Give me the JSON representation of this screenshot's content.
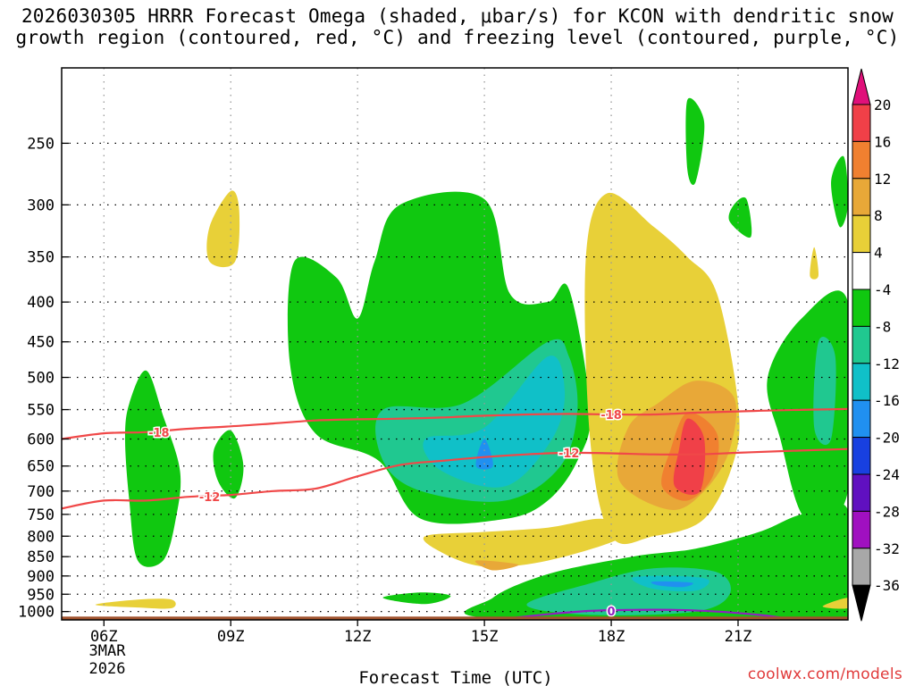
{
  "chart_data": {
    "type": "heatmap",
    "title_line1": "2026030305 HRRR Forecast Omega (shaded, μbar/s) for KCON with dendritic snow",
    "title_line2": "growth region (contoured, red, °C) and freezing level (contoured, purple, °C)",
    "xlabel": "Forecast Time (UTC)",
    "x_ticks": [
      "06Z",
      "09Z",
      "12Z",
      "15Z",
      "18Z",
      "21Z"
    ],
    "x_tick_hours": [
      6,
      9,
      12,
      15,
      18,
      21
    ],
    "x_range_hours": [
      5,
      23.6
    ],
    "date_label_day": "3MAR",
    "date_label_year": "2026",
    "y_ticks": [
      "250",
      "300",
      "350",
      "400",
      "450",
      "500",
      "550",
      "600",
      "650",
      "700",
      "750",
      "800",
      "850",
      "900",
      "950",
      "1000"
    ],
    "y_tick_values": [
      250,
      300,
      350,
      400,
      450,
      500,
      550,
      600,
      650,
      700,
      750,
      800,
      850,
      900,
      950,
      1000
    ],
    "y_range_hPa": [
      200,
      1025
    ],
    "y_scale": "log-pressure",
    "colorbar": {
      "labels": [
        "20",
        "16",
        "12",
        "8",
        "4",
        "-4",
        "-8",
        "-12",
        "-16",
        "-20",
        "-24",
        "-28",
        "-32",
        "-36"
      ],
      "bins": [
        {
          "range": "16 to 20",
          "color": "#f04048"
        },
        {
          "range": "12 to 16",
          "color": "#f08030"
        },
        {
          "range": "8 to 12",
          "color": "#e8a838"
        },
        {
          "range": "4 to 8",
          "color": "#e8d038"
        },
        {
          "range": "-4 to 4",
          "color": "#ffffff"
        },
        {
          "range": "-8 to -4",
          "color": "#10c810"
        },
        {
          "range": "-12 to -8",
          "color": "#20c890"
        },
        {
          "range": "-16 to -12",
          "color": "#10c0c8"
        },
        {
          "range": "-20 to -16",
          "color": "#2090f0"
        },
        {
          "range": "-24 to -20",
          "color": "#1840e0"
        },
        {
          "range": "-28 to -24",
          "color": "#6010c0"
        },
        {
          "range": "-32 to -28",
          "color": "#a010c0"
        },
        {
          "range": "-36 to -32",
          "color": "#a8a8a8"
        }
      ],
      "over_color": "#e0107a",
      "under_color": "#000000"
    },
    "contours": [
      {
        "name": "-18C isotherm",
        "label": "-18",
        "color": "#f04848",
        "points": [
          [
            5.0,
            600
          ],
          [
            6.0,
            590
          ],
          [
            7.0,
            588
          ],
          [
            8.0,
            582
          ],
          [
            9.0,
            578
          ],
          [
            10.0,
            573
          ],
          [
            11.0,
            568
          ],
          [
            12.0,
            566
          ],
          [
            13.0,
            565
          ],
          [
            14.0,
            563
          ],
          [
            15.0,
            560
          ],
          [
            16.0,
            558
          ],
          [
            17.0,
            557
          ],
          [
            18.0,
            558
          ],
          [
            19.0,
            558
          ],
          [
            20.0,
            555
          ],
          [
            21.0,
            553
          ],
          [
            22.0,
            551
          ],
          [
            23.6,
            549
          ]
        ]
      },
      {
        "name": "-12C isotherm",
        "label": "-12",
        "color": "#f04848",
        "points": [
          [
            5.0,
            737
          ],
          [
            6.0,
            720
          ],
          [
            7.0,
            720
          ],
          [
            8.0,
            712
          ],
          [
            9.0,
            708
          ],
          [
            10.0,
            700
          ],
          [
            11.0,
            695
          ],
          [
            12.0,
            670
          ],
          [
            13.0,
            648
          ],
          [
            14.0,
            640
          ],
          [
            15.0,
            633
          ],
          [
            16.0,
            628
          ],
          [
            17.0,
            625
          ],
          [
            18.0,
            626
          ],
          [
            19.0,
            628
          ],
          [
            20.0,
            628
          ],
          [
            21.0,
            625
          ],
          [
            22.0,
            622
          ],
          [
            23.6,
            618
          ]
        ]
      },
      {
        "name": "freezing level (0C)",
        "label": "0",
        "color": "#9020c0",
        "points": [
          [
            15.6,
            1020
          ],
          [
            16.5,
            1008
          ],
          [
            17.5,
            998
          ],
          [
            18.5,
            995
          ],
          [
            19.5,
            995
          ],
          [
            20.5,
            1000
          ],
          [
            21.5,
            1010
          ],
          [
            22.0,
            1018
          ]
        ]
      }
    ],
    "omega_regions": [
      {
        "color": "#10c810",
        "points": [
          [
            7.0,
            490
          ],
          [
            7.4,
            560
          ],
          [
            7.8,
            660
          ],
          [
            7.7,
            760
          ],
          [
            7.4,
            860
          ],
          [
            6.8,
            860
          ],
          [
            6.6,
            720
          ],
          [
            6.5,
            600
          ],
          [
            6.6,
            540
          ]
        ]
      },
      {
        "color": "#10c810",
        "points": [
          [
            9.0,
            585
          ],
          [
            9.3,
            650
          ],
          [
            9.1,
            715
          ],
          [
            8.7,
            680
          ],
          [
            8.6,
            620
          ]
        ]
      },
      {
        "color": "#e8d038",
        "points": [
          [
            9.0,
            288
          ],
          [
            9.2,
            305
          ],
          [
            9.1,
            355
          ],
          [
            8.5,
            355
          ],
          [
            8.5,
            320
          ]
        ]
      },
      {
        "color": "#e8d038",
        "points": [
          [
            6.8,
            965
          ],
          [
            7.6,
            965
          ],
          [
            7.6,
            990
          ],
          [
            6.8,
            988
          ],
          [
            5.8,
            980
          ]
        ]
      },
      {
        "color": "#10c810",
        "points": [
          [
            10.5,
            355
          ],
          [
            11.5,
            372
          ],
          [
            12.0,
            420
          ],
          [
            12.4,
            355
          ],
          [
            13.0,
            300
          ],
          [
            15.0,
            295
          ],
          [
            15.6,
            390
          ],
          [
            16.5,
            400
          ],
          [
            17.0,
            385
          ],
          [
            17.5,
            550
          ],
          [
            17.2,
            640
          ],
          [
            16.5,
            720
          ],
          [
            15.5,
            760
          ],
          [
            13.5,
            760
          ],
          [
            12.5,
            640
          ],
          [
            11.0,
            590
          ],
          [
            10.4,
            480
          ]
        ]
      },
      {
        "color": "#20c890",
        "points": [
          [
            12.6,
            550
          ],
          [
            14.5,
            540
          ],
          [
            16.5,
            450
          ],
          [
            17.0,
            470
          ],
          [
            17.2,
            550
          ],
          [
            16.8,
            650
          ],
          [
            15.5,
            720
          ],
          [
            13.5,
            700
          ],
          [
            12.6,
            640
          ]
        ]
      },
      {
        "color": "#10c0c8",
        "points": [
          [
            13.6,
            600
          ],
          [
            15.0,
            580
          ],
          [
            16.5,
            470
          ],
          [
            16.9,
            520
          ],
          [
            16.6,
            600
          ],
          [
            15.5,
            690
          ],
          [
            14.0,
            660
          ]
        ]
      },
      {
        "color": "#2090f0",
        "points": [
          [
            15.0,
            600
          ],
          [
            15.2,
            650
          ],
          [
            14.8,
            650
          ]
        ]
      },
      {
        "color": "#e8d038",
        "points": [
          [
            17.9,
            290
          ],
          [
            19.0,
            320
          ],
          [
            19.8,
            350
          ],
          [
            20.5,
            390
          ],
          [
            21.0,
            540
          ],
          [
            20.9,
            640
          ],
          [
            20.2,
            760
          ],
          [
            19.0,
            800
          ],
          [
            18.0,
            800
          ],
          [
            17.5,
            600
          ],
          [
            17.4,
            350
          ]
        ]
      },
      {
        "color": "#e8a838",
        "points": [
          [
            20.0,
            505
          ],
          [
            20.9,
            530
          ],
          [
            20.8,
            620
          ],
          [
            20.2,
            700
          ],
          [
            19.4,
            740
          ],
          [
            18.2,
            680
          ],
          [
            18.4,
            580
          ],
          [
            19.1,
            540
          ]
        ]
      },
      {
        "color": "#f08030",
        "points": [
          [
            19.8,
            555
          ],
          [
            20.5,
            590
          ],
          [
            20.4,
            670
          ],
          [
            19.8,
            720
          ],
          [
            19.2,
            690
          ],
          [
            19.4,
            620
          ]
        ]
      },
      {
        "color": "#f04048",
        "points": [
          [
            19.8,
            565
          ],
          [
            20.2,
            600
          ],
          [
            20.1,
            700
          ],
          [
            19.5,
            690
          ],
          [
            19.6,
            620
          ]
        ]
      },
      {
        "color": "#e8d038",
        "points": [
          [
            13.6,
            800
          ],
          [
            15.0,
            790
          ],
          [
            16.5,
            780
          ],
          [
            17.8,
            760
          ],
          [
            18.3,
            800
          ],
          [
            16.5,
            860
          ],
          [
            15.0,
            875
          ],
          [
            14.0,
            840
          ]
        ]
      },
      {
        "color": "#e8a838",
        "points": [
          [
            14.8,
            860
          ],
          [
            15.8,
            870
          ],
          [
            15.2,
            885
          ]
        ]
      },
      {
        "color": "#10c810",
        "points": [
          [
            15.2,
            960
          ],
          [
            16.5,
            895
          ],
          [
            18.5,
            850
          ],
          [
            20.0,
            830
          ],
          [
            21.5,
            790
          ],
          [
            22.5,
            750
          ],
          [
            23.6,
            740
          ],
          [
            23.6,
            1020
          ],
          [
            15.2,
            1020
          ]
        ]
      },
      {
        "color": "#20c890",
        "points": [
          [
            16.0,
            980
          ],
          [
            17.5,
            920
          ],
          [
            19.0,
            880
          ],
          [
            20.5,
            890
          ],
          [
            20.8,
            950
          ],
          [
            20.0,
            1000
          ],
          [
            17.5,
            1010
          ]
        ]
      },
      {
        "color": "#10c0c8",
        "points": [
          [
            18.5,
            905
          ],
          [
            19.5,
            900
          ],
          [
            20.3,
            910
          ],
          [
            20.0,
            940
          ],
          [
            19.0,
            935
          ]
        ]
      },
      {
        "color": "#2090f0",
        "points": [
          [
            19.0,
            915
          ],
          [
            19.9,
            918
          ],
          [
            19.7,
            930
          ],
          [
            19.1,
            925
          ]
        ]
      },
      {
        "color": "#10c810",
        "points": [
          [
            12.6,
            960
          ],
          [
            13.5,
            945
          ],
          [
            14.2,
            955
          ],
          [
            13.6,
            978
          ]
        ]
      },
      {
        "color": "#10c810",
        "points": [
          [
            19.8,
            220
          ],
          [
            20.2,
            235
          ],
          [
            20.0,
            280
          ],
          [
            19.8,
            270
          ]
        ]
      },
      {
        "color": "#10c810",
        "points": [
          [
            20.9,
            300
          ],
          [
            21.2,
            295
          ],
          [
            21.3,
            330
          ],
          [
            20.8,
            315
          ]
        ]
      },
      {
        "color": "#e8d038",
        "points": [
          [
            22.8,
            340
          ],
          [
            22.9,
            370
          ],
          [
            22.7,
            370
          ]
        ]
      },
      {
        "color": "#10c810",
        "points": [
          [
            23.5,
            260
          ],
          [
            23.6,
            300
          ],
          [
            23.4,
            320
          ],
          [
            23.2,
            280
          ]
        ]
      },
      {
        "color": "#10c810",
        "points": [
          [
            23.6,
            400
          ],
          [
            22.5,
            420
          ],
          [
            21.7,
            500
          ],
          [
            22.0,
            600
          ],
          [
            22.6,
            760
          ],
          [
            23.6,
            700
          ]
        ]
      },
      {
        "color": "#20c890",
        "points": [
          [
            22.9,
            450
          ],
          [
            23.3,
            470
          ],
          [
            23.2,
            600
          ],
          [
            22.8,
            580
          ]
        ]
      },
      {
        "color": "#e8d038",
        "points": [
          [
            23.6,
            990
          ],
          [
            23.0,
            985
          ],
          [
            23.6,
            960
          ]
        ]
      }
    ],
    "ground_color": "#a0522d"
  },
  "credit": "coolwx.com/models"
}
